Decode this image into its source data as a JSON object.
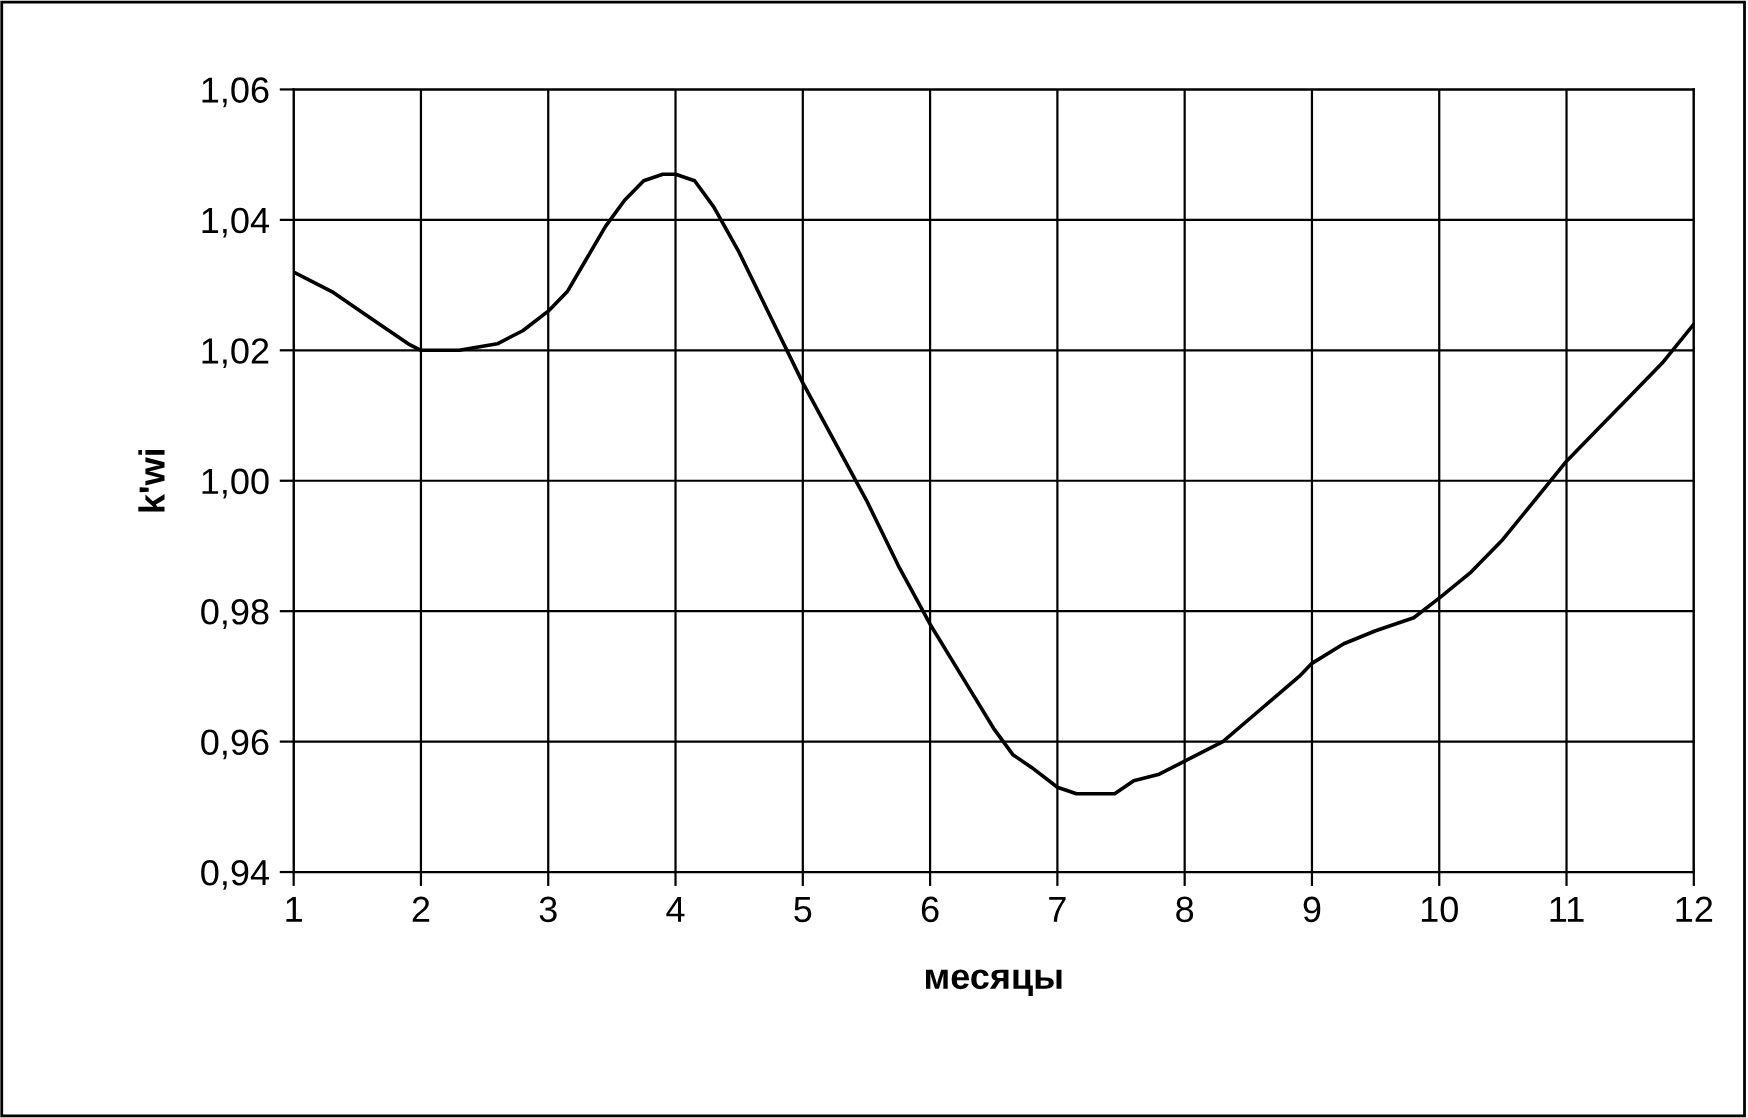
{
  "chart_data": {
    "type": "line",
    "xlabel": "месяцы",
    "ylabel": "k'wi",
    "x": [
      1,
      1.3,
      1.6,
      1.9,
      2.0,
      2.3,
      2.6,
      2.8,
      3.0,
      3.15,
      3.3,
      3.45,
      3.6,
      3.75,
      3.9,
      4.0,
      4.15,
      4.3,
      4.5,
      4.75,
      5.0,
      5.25,
      5.5,
      5.75,
      6.0,
      6.25,
      6.5,
      6.65,
      6.8,
      7.0,
      7.15,
      7.3,
      7.45,
      7.6,
      7.8,
      8.0,
      8.3,
      8.6,
      8.9,
      9.0,
      9.25,
      9.5,
      9.8,
      10.0,
      10.25,
      10.5,
      10.75,
      11.0,
      11.25,
      11.5,
      11.75,
      12.0
    ],
    "series": [
      {
        "color": "#000000",
        "values": [
          1.032,
          1.029,
          1.025,
          1.021,
          1.02,
          1.02,
          1.021,
          1.023,
          1.026,
          1.029,
          1.034,
          1.039,
          1.043,
          1.046,
          1.047,
          1.047,
          1.046,
          1.042,
          1.035,
          1.025,
          1.015,
          1.006,
          0.997,
          0.987,
          0.978,
          0.97,
          0.962,
          0.958,
          0.956,
          0.953,
          0.952,
          0.952,
          0.952,
          0.954,
          0.955,
          0.957,
          0.96,
          0.965,
          0.97,
          0.972,
          0.975,
          0.977,
          0.979,
          0.982,
          0.986,
          0.991,
          0.997,
          1.003,
          1.008,
          1.013,
          1.018,
          1.024
        ]
      }
    ],
    "xlim": [
      1,
      12
    ],
    "xticks": [
      1,
      2,
      3,
      4,
      5,
      6,
      7,
      8,
      9,
      10,
      11,
      12
    ],
    "ylim": [
      0.94,
      1.06
    ],
    "yticks": [
      {
        "value": 0.94,
        "label": "0,94"
      },
      {
        "value": 0.96,
        "label": "0,96"
      },
      {
        "value": 0.98,
        "label": "0,98"
      },
      {
        "value": 1.0,
        "label": "1,00"
      },
      {
        "value": 1.02,
        "label": "1,02"
      },
      {
        "value": 1.04,
        "label": "1,04"
      },
      {
        "value": 1.06,
        "label": "1,06"
      }
    ],
    "grid": true,
    "legend": false,
    "marker": "none",
    "line_style": "solid"
  }
}
